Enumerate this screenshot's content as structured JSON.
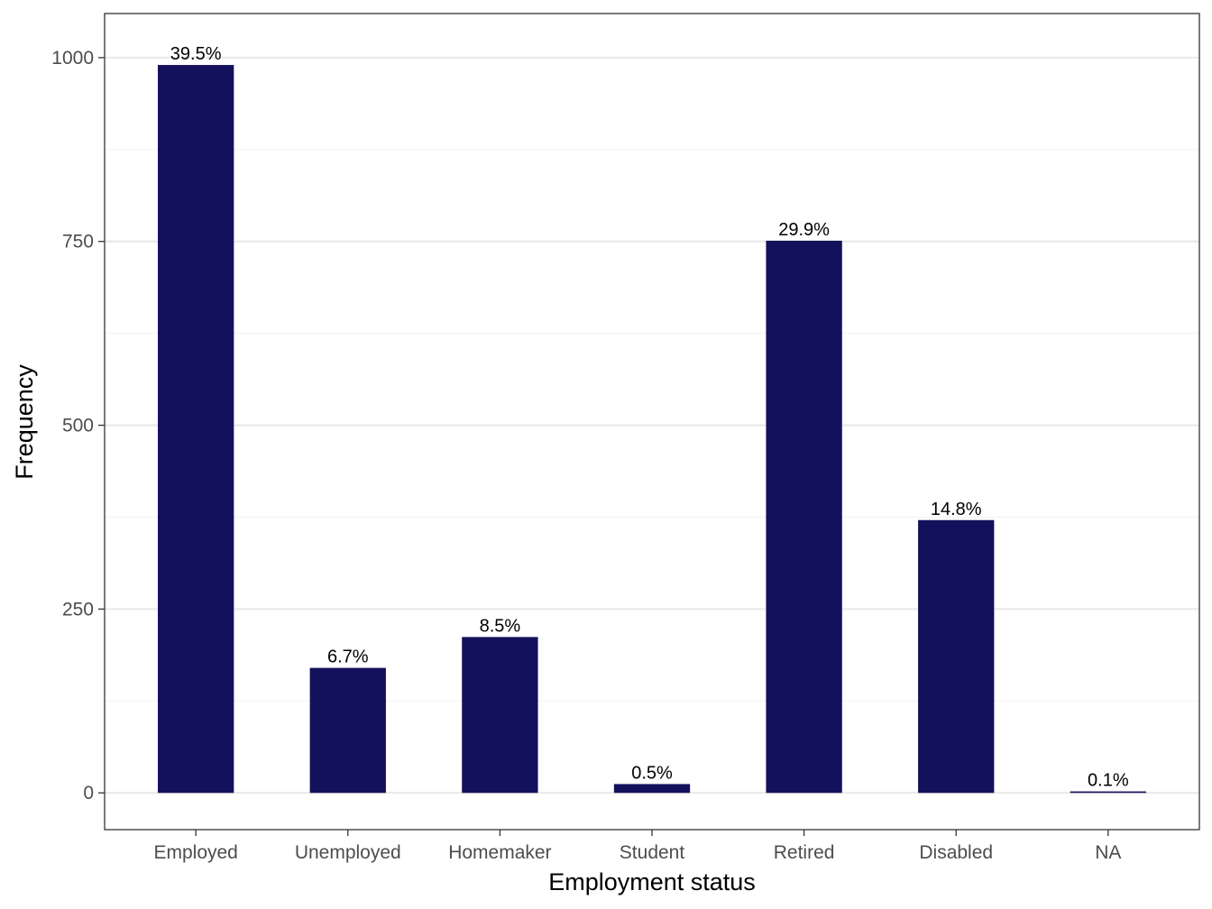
{
  "chart_data": {
    "type": "bar",
    "categories": [
      "Employed",
      "Unemployed",
      "Homemaker",
      "Student",
      "Retired",
      "Disabled",
      "NA"
    ],
    "values": [
      990,
      170,
      212,
      12,
      751,
      371,
      2
    ],
    "labels": [
      "39.5%",
      "6.7%",
      "8.5%",
      "0.5%",
      "29.9%",
      "14.8%",
      "0.1%"
    ],
    "xlabel": "Employment status",
    "ylabel": "Frequency",
    "yticks": [
      0,
      250,
      500,
      750,
      1000
    ],
    "ylim": [
      -50,
      1060
    ],
    "grid": true,
    "legend": "none"
  },
  "colors": {
    "bar": "#13105c",
    "panel_border": "#333333",
    "grid_major": "#ebebeb",
    "grid_minor": "#f2f2f2"
  }
}
